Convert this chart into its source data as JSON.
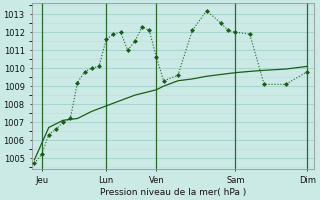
{
  "xlabel": "Pression niveau de la mer( hPa )",
  "background_color": "#cbeae6",
  "grid_color_major": "#a8d4ce",
  "grid_color_minor": "#b8deda",
  "line_color": "#1a5c1a",
  "ylim": [
    1004.4,
    1013.6
  ],
  "xlim": [
    -0.2,
    19.5
  ],
  "yticks": [
    1005,
    1006,
    1007,
    1008,
    1009,
    1010,
    1011,
    1012,
    1013
  ],
  "x_tick_pos": [
    0.5,
    5.0,
    8.5,
    14.0,
    19.0
  ],
  "x_tick_labels": [
    "Jeu",
    "Lun",
    "Ven",
    "Sam",
    "Dim"
  ],
  "x_vline_pos": [
    0.5,
    5.0,
    8.5,
    14.0,
    19.0
  ],
  "series1_x": [
    0.0,
    0.5,
    1.0,
    1.5,
    2.0,
    2.5,
    3.0,
    3.5,
    4.0,
    4.5,
    5.0,
    5.5,
    6.0,
    6.5,
    7.0,
    7.5,
    8.0,
    8.5,
    9.0,
    10.0,
    11.0,
    12.0,
    13.0,
    13.5,
    14.0,
    15.0,
    16.0,
    17.5,
    19.0
  ],
  "series1_y": [
    1004.7,
    1005.2,
    1006.3,
    1006.6,
    1007.0,
    1007.2,
    1009.2,
    1009.8,
    1010.0,
    1010.1,
    1011.6,
    1011.9,
    1012.0,
    1011.0,
    1011.5,
    1012.3,
    1012.1,
    1010.6,
    1009.3,
    1009.6,
    1012.1,
    1013.2,
    1012.5,
    1012.1,
    1012.0,
    1011.9,
    1009.1,
    1009.1,
    1009.8
  ],
  "series2_x": [
    0.0,
    1.0,
    2.0,
    3.0,
    4.0,
    5.0,
    6.0,
    7.0,
    8.0,
    8.5,
    9.0,
    9.5,
    10.0,
    11.0,
    12.0,
    13.0,
    14.0,
    15.0,
    16.0,
    17.5,
    19.0
  ],
  "series2_y": [
    1004.9,
    1006.7,
    1007.1,
    1007.2,
    1007.6,
    1007.9,
    1008.2,
    1008.5,
    1008.7,
    1008.8,
    1009.0,
    1009.15,
    1009.3,
    1009.4,
    1009.55,
    1009.65,
    1009.75,
    1009.82,
    1009.88,
    1009.95,
    1010.1
  ]
}
